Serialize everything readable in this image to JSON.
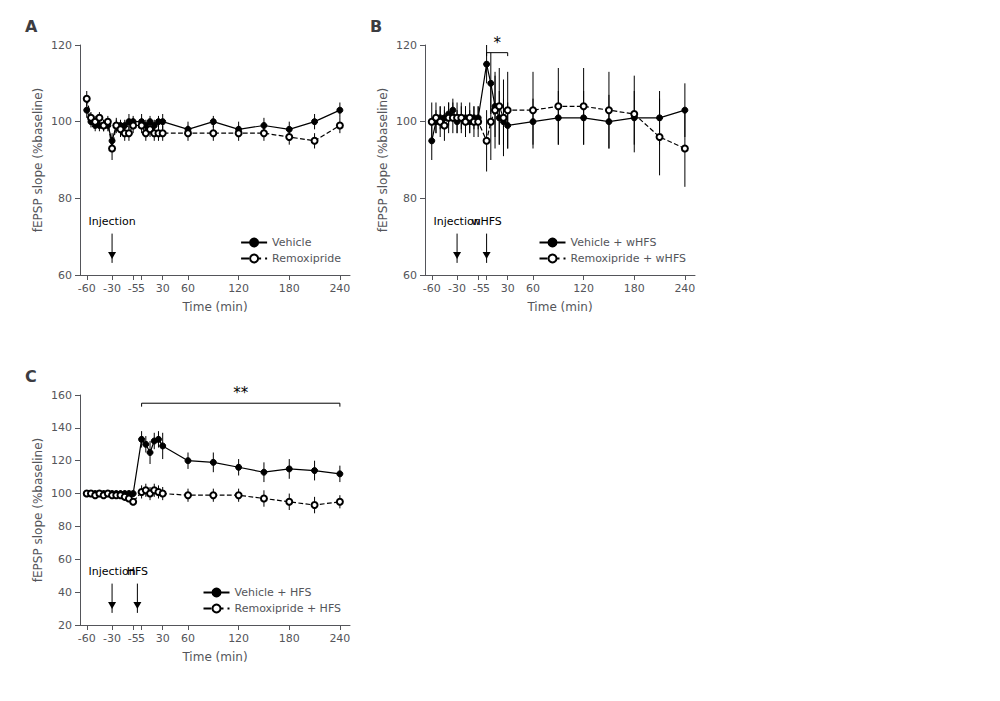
{
  "chart_data": [
    {
      "type": "line",
      "title": "A",
      "xlabel": "Time (min)",
      "ylabel": "fEPSP slope (%baseline)",
      "x": [
        -60,
        -55,
        -50,
        -45,
        -40,
        -35,
        -30,
        -25,
        -20,
        -15,
        -10,
        -5,
        5,
        10,
        15,
        20,
        25,
        30,
        60,
        90,
        120,
        150,
        180,
        210,
        240
      ],
      "xlim": [
        -68,
        252
      ],
      "xticks": [
        -60,
        -30,
        -5,
        5,
        30,
        60,
        120,
        180,
        240
      ],
      "ylim": [
        60,
        120
      ],
      "yticks": [
        60,
        80,
        100,
        120
      ],
      "grid": false,
      "legend": "lower right",
      "series": [
        {
          "name": "Vehicle",
          "color": "#000000",
          "marker": "circle",
          "line_style": "solid",
          "values": [
            103,
            100,
            99,
            99,
            99,
            99,
            95,
            99,
            99,
            99,
            100,
            100,
            100,
            99,
            100,
            99,
            100,
            100,
            98,
            100,
            98,
            99,
            98,
            100,
            103
          ],
          "errors": [
            2,
            1.5,
            1.5,
            1.5,
            1.5,
            1.5,
            2,
            1.5,
            1.5,
            1.5,
            2,
            1.5,
            2,
            1.5,
            1.5,
            1.5,
            1.5,
            2,
            2,
            1.5,
            2,
            2,
            2,
            2,
            2
          ]
        },
        {
          "name": "Remoxipride",
          "color": "#000000",
          "marker": "open circle",
          "line_style": "dashed",
          "values": [
            106,
            101,
            100,
            101,
            99,
            100,
            93,
            99,
            98,
            97,
            97,
            99,
            99,
            97,
            98,
            97,
            97,
            97,
            97,
            97,
            97,
            97,
            96,
            95,
            99
          ],
          "errors": [
            2,
            1.5,
            1.5,
            1.5,
            1.5,
            1.5,
            3,
            2,
            2,
            2,
            2,
            2,
            2,
            2,
            2,
            2,
            2,
            2,
            2,
            2,
            2,
            2,
            2,
            2,
            2
          ]
        }
      ],
      "annotations": [
        {
          "type": "arrow",
          "x": -30,
          "text": "Injection"
        }
      ]
    },
    {
      "type": "line",
      "title": "B",
      "xlabel": "Time (min)",
      "ylabel": "fEPSP slope (%baseline)",
      "x": [
        -60,
        -55,
        -50,
        -45,
        -40,
        -35,
        -30,
        -25,
        -20,
        -15,
        -10,
        -5,
        5,
        10,
        15,
        20,
        25,
        30,
        60,
        90,
        120,
        150,
        180,
        210,
        240
      ],
      "xlim": [
        -68,
        252
      ],
      "xticks": [
        -60,
        -30,
        -5,
        5,
        30,
        60,
        120,
        180,
        240
      ],
      "ylim": [
        60,
        120
      ],
      "yticks": [
        60,
        80,
        100,
        120
      ],
      "grid": false,
      "legend": "lower right",
      "series": [
        {
          "name": "Vehicle + wHFS",
          "color": "#000000",
          "marker": "circle",
          "line_style": "solid",
          "values": [
            95,
            100,
            101,
            101,
            102,
            103,
            100,
            101,
            101,
            100,
            101,
            101,
            115,
            110,
            104,
            101,
            100,
            99,
            100,
            101,
            101,
            100,
            101,
            101,
            103
          ],
          "errors": [
            5,
            3,
            3,
            3,
            3,
            3,
            3,
            3,
            3,
            3,
            3,
            3,
            5,
            8,
            8,
            7,
            6,
            6,
            6,
            7,
            7,
            7,
            7,
            7,
            7
          ]
        },
        {
          "name": "Remoxipride + wHFS",
          "color": "#000000",
          "marker": "open circle",
          "line_style": "dashed",
          "values": [
            100,
            101,
            100,
            99,
            101,
            101,
            101,
            101,
            100,
            101,
            100,
            100,
            95,
            100,
            103,
            104,
            101,
            103,
            103,
            104,
            104,
            103,
            102,
            96,
            93
          ],
          "errors": [
            5,
            4,
            4,
            4,
            4,
            4,
            4,
            4,
            4,
            4,
            4,
            4,
            8,
            10,
            10,
            10,
            10,
            10,
            10,
            10,
            10,
            10,
            10,
            10,
            10
          ]
        }
      ],
      "annotations": [
        {
          "type": "arrow",
          "x": -30,
          "text": "Injection"
        },
        {
          "type": "arrow",
          "x": 5,
          "text": "wHFS"
        },
        {
          "type": "bracket",
          "x1": 5,
          "x2": 30,
          "y": 118,
          "text": "*"
        }
      ]
    },
    {
      "type": "line",
      "title": "C",
      "xlabel": "Time (min)",
      "ylabel": "fEPSP slope (%baseline)",
      "x": [
        -60,
        -55,
        -50,
        -45,
        -40,
        -35,
        -30,
        -25,
        -20,
        -15,
        -10,
        -5,
        5,
        10,
        15,
        20,
        25,
        30,
        60,
        90,
        120,
        150,
        180,
        210,
        240
      ],
      "xlim": [
        -68,
        252
      ],
      "xticks": [
        -60,
        -30,
        -5,
        5,
        30,
        60,
        120,
        180,
        240
      ],
      "ylim": [
        20,
        160
      ],
      "yticks": [
        20,
        40,
        60,
        80,
        100,
        120,
        140,
        160
      ],
      "grid": false,
      "legend": "lower right",
      "series": [
        {
          "name": "Vehicle + HFS",
          "color": "#000000",
          "marker": "circle",
          "line_style": "solid",
          "values": [
            100,
            100,
            100,
            100,
            100,
            100,
            100,
            100,
            100,
            100,
            100,
            100,
            133,
            130,
            125,
            132,
            133,
            129,
            120,
            119,
            116,
            113,
            115,
            114,
            112
          ],
          "errors": [
            2,
            2,
            2,
            2,
            2,
            2,
            2,
            2,
            2,
            2,
            2,
            2,
            5,
            5,
            7,
            5,
            5,
            8,
            5,
            6,
            5,
            6,
            6,
            6,
            5
          ]
        },
        {
          "name": "Remoxipride + HFS",
          "color": "#000000",
          "marker": "open circle",
          "line_style": "dashed",
          "values": [
            100,
            100,
            99,
            100,
            99,
            100,
            99,
            99,
            99,
            98,
            97,
            95,
            101,
            102,
            100,
            102,
            101,
            100,
            99,
            99,
            99,
            97,
            95,
            93,
            95
          ],
          "errors": [
            2,
            2,
            2,
            2,
            2,
            2,
            2,
            2,
            2,
            2,
            2,
            2,
            4,
            4,
            4,
            4,
            4,
            4,
            4,
            4,
            4,
            5,
            5,
            5,
            4
          ]
        }
      ],
      "annotations": [
        {
          "type": "arrow",
          "x": -30,
          "text": "Injection"
        },
        {
          "type": "arrow",
          "x": 0,
          "text": "HFS"
        },
        {
          "type": "bracket",
          "x1": 5,
          "x2": 240,
          "y": 155,
          "text": "**"
        }
      ]
    }
  ]
}
